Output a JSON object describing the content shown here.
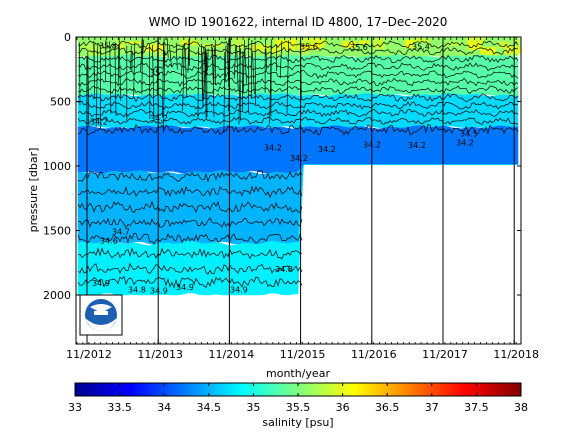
{
  "chart_data": {
    "type": "heatmap",
    "title": "WMO ID 1901622, internal ID 4800, 17–Dec–2020",
    "xlabel": "month/year",
    "ylabel": "pressure [dbar]",
    "x_ticks": [
      "11/2012",
      "11/2013",
      "11/2014",
      "11/2015",
      "11/2016",
      "11/2017",
      "11/2018"
    ],
    "x_range_years": [
      2012.7,
      2019.2
    ],
    "y_ticks": [
      0,
      500,
      1000,
      1500,
      2000
    ],
    "ylim": [
      2380,
      0
    ],
    "y_reversed": true,
    "grid": false,
    "colorbar": {
      "label": "salinity [psu]",
      "range": [
        33,
        38
      ],
      "ticks": [
        "33",
        "33.5",
        "34",
        "34.5",
        "35",
        "35.5",
        "36",
        "36.5",
        "37",
        "37.5",
        "38"
      ],
      "colormap": "jet"
    },
    "profile_depth_max_dbar": [
      {
        "from": "11/2012",
        "to": "11/2015",
        "max_pressure": 2000
      },
      {
        "from": "11/2015",
        "to": "11/2018",
        "max_pressure": 990
      }
    ],
    "salinity_bands_dbar": [
      {
        "top": 0,
        "bottom": 150,
        "salinity": 35.6
      },
      {
        "top": 150,
        "bottom": 450,
        "salinity": 35.3
      },
      {
        "top": 450,
        "bottom": 700,
        "salinity": 34.7
      },
      {
        "top": 700,
        "bottom": 1050,
        "salinity": 34.2
      },
      {
        "top": 1050,
        "bottom": 1600,
        "salinity": 34.5
      },
      {
        "top": 1600,
        "bottom": 2000,
        "salinity": 34.8
      }
    ],
    "contour_labels": [
      "35.8",
      "35.6",
      "35.6",
      "35.4",
      "35",
      "34.2",
      "34.2",
      "34.2",
      "34.2",
      "34.2",
      "34.2",
      "34.2",
      "34.2",
      "34.5",
      "34.6",
      "34.7",
      "34.8",
      "34.8",
      "34.9",
      "34.9",
      "34.9",
      "34.9"
    ]
  }
}
